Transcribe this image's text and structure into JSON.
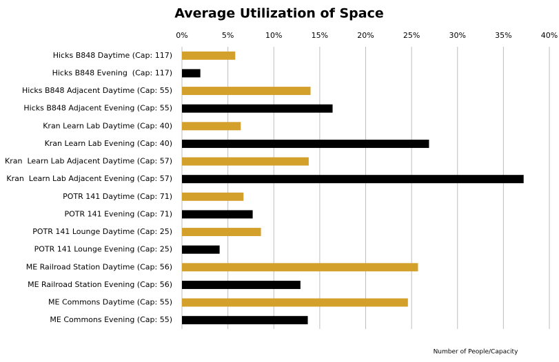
{
  "chart_data": {
    "type": "barh",
    "title": "Average Utilization of Space",
    "x_label": "Number of People/Capacity",
    "categories": [
      "Hicks B848 Daytime (Cap: 117)",
      "Hicks B848 Evening  (Cap: 117)",
      "Hicks B848 Adjacent Daytime (Cap: 55)",
      "Hicks B848 Adjacent Evening (Cap: 55)",
      "Kran Learn Lab Daytime (Cap: 40)",
      "Kran Learn Lab Evening (Cap: 40)",
      "Kran  Learn Lab Adjacent Daytime (Cap: 57)",
      "Kran  Learn Lab Adjacent Evening (Cap: 57)",
      "POTR 141 Daytime (Cap: 71)",
      "POTR 141 Evening (Cap: 71)",
      "POTR 141 Lounge Daytime (Cap: 25)",
      "POTR 141 Lounge Evening (Cap: 25)",
      "ME Railroad Station Daytime (Cap: 56)",
      "ME Railroad Station Evening (Cap: 56)",
      "ME Commons Daytime (Cap: 55)",
      "ME Commons Evening (Cap: 55)"
    ],
    "values": [
      5.8,
      2.0,
      14.0,
      16.4,
      6.4,
      26.9,
      13.8,
      37.2,
      6.7,
      7.7,
      8.6,
      4.1,
      25.7,
      12.9,
      24.6,
      13.7
    ],
    "colors": [
      "#d4a02c",
      "#000000",
      "#d4a02c",
      "#000000",
      "#d4a02c",
      "#000000",
      "#d4a02c",
      "#000000",
      "#d4a02c",
      "#000000",
      "#d4a02c",
      "#000000",
      "#d4a02c",
      "#000000",
      "#d4a02c",
      "#000000"
    ],
    "xlim": [
      0,
      40
    ],
    "xticks": [
      {
        "value": 0,
        "label": "0%"
      },
      {
        "value": 5,
        "label": "5%"
      },
      {
        "value": 10,
        "label": "10%"
      },
      {
        "value": 15,
        "label": "15%"
      },
      {
        "value": 20,
        "label": "20%"
      },
      {
        "value": 25,
        "label": "25%"
      },
      {
        "value": 30,
        "label": "30%"
      },
      {
        "value": 35,
        "label": "35%"
      },
      {
        "value": 40,
        "label": "40%"
      }
    ],
    "grid": true
  }
}
